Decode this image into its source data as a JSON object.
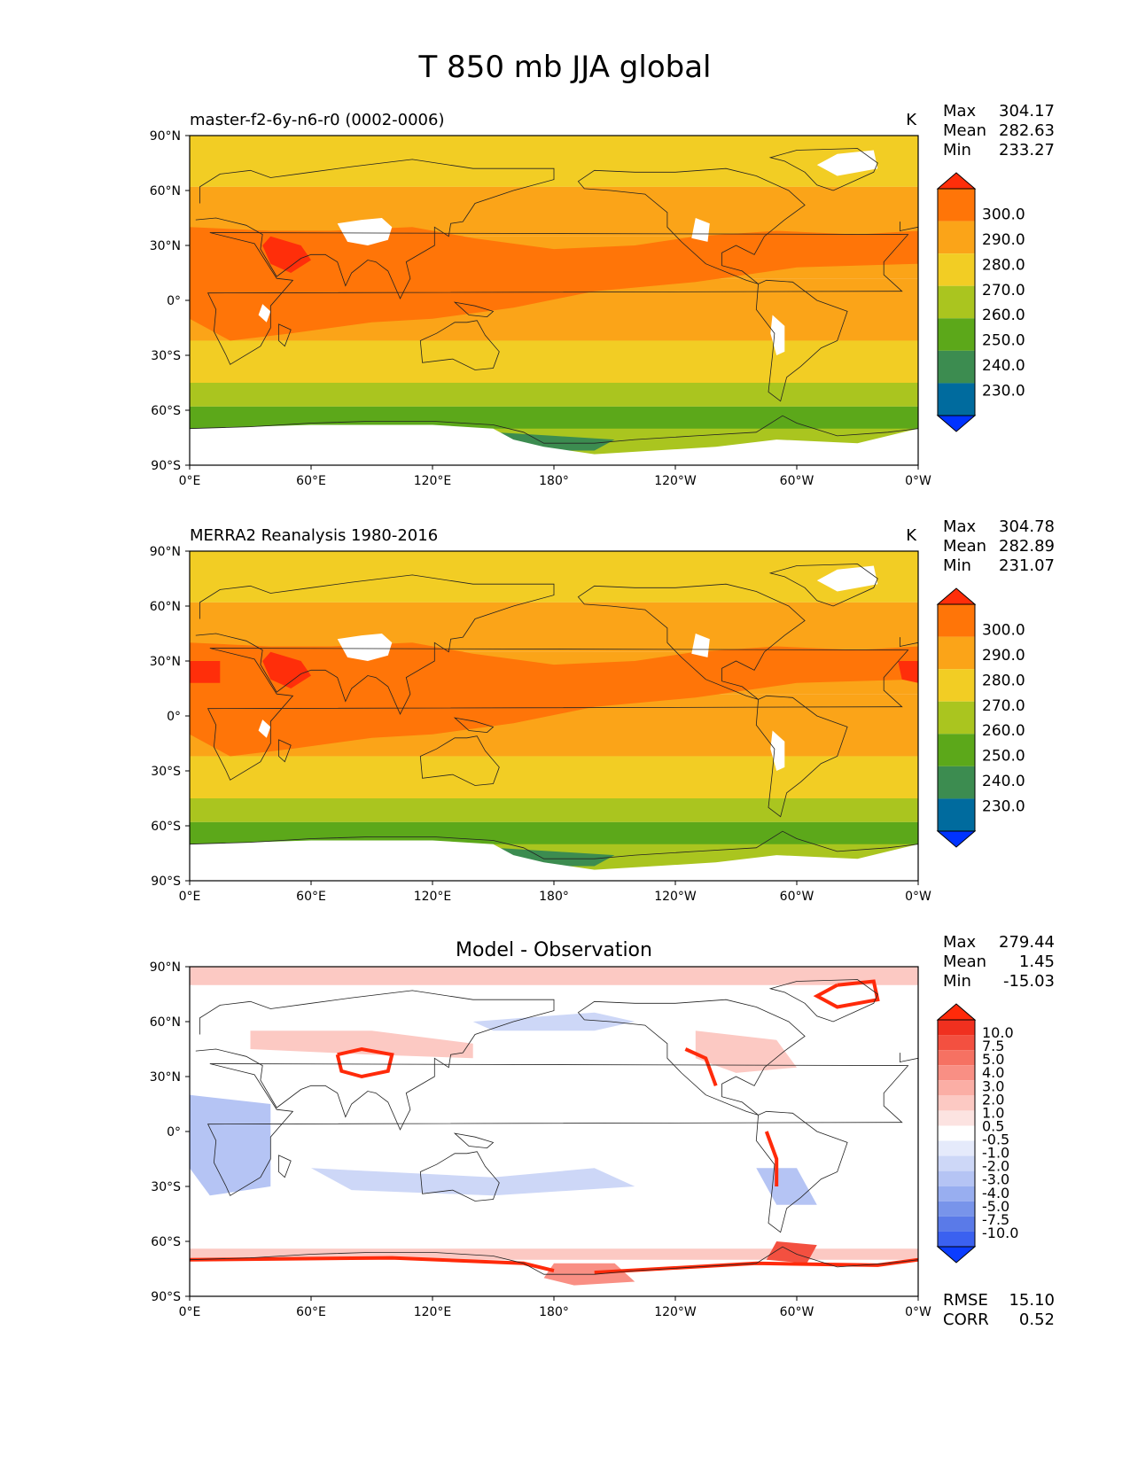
{
  "figure_title": "T 850 mb JJA global",
  "colors": {
    "abs_levels": [
      "#0033ff",
      "#006b9e",
      "#3c8c50",
      "#5ca81a",
      "#aac51f",
      "#f2cd24",
      "#fba418",
      "#ff7508",
      "#ff2e0a"
    ],
    "diff_levels": [
      "#0b3dff",
      "#3b61f0",
      "#5a7ae8",
      "#7894ea",
      "#98aef0",
      "#b5c4f4",
      "#cdd7f7",
      "#e5eafb",
      "#ffffff",
      "#fce3e1",
      "#fcc9c3",
      "#fbaea5",
      "#f98f84",
      "#f67162",
      "#f35040",
      "#f0301f",
      "#ff2a0a"
    ],
    "land_outline": "#222222",
    "missing_data": "#ffffff"
  },
  "axis_ticks": {
    "lat": [
      "90°N",
      "60°N",
      "30°N",
      "0°",
      "30°S",
      "60°S",
      "90°S"
    ],
    "lon": [
      "0°E",
      "60°E",
      "120°E",
      "180°",
      "120°W",
      "60°W",
      "0°W"
    ]
  },
  "panels": [
    {
      "title": "master-f2-6y-n6-r0 (0002-0006)",
      "title_position": "left",
      "units": "K",
      "stats": [
        {
          "name": "Max",
          "value": "304.17"
        },
        {
          "name": "Mean",
          "value": "282.63"
        },
        {
          "name": "Min",
          "value": "233.27"
        }
      ],
      "colorbar_labels": [
        "300.0",
        "290.0",
        "280.0",
        "270.0",
        "260.0",
        "250.0",
        "240.0",
        "230.0"
      ]
    },
    {
      "title": "MERRA2 Reanalysis 1980-2016",
      "title_position": "left",
      "units": "K",
      "stats": [
        {
          "name": "Max",
          "value": "304.78"
        },
        {
          "name": "Mean",
          "value": "282.89"
        },
        {
          "name": "Min",
          "value": "231.07"
        }
      ],
      "colorbar_labels": [
        "300.0",
        "290.0",
        "280.0",
        "270.0",
        "260.0",
        "250.0",
        "240.0",
        "230.0"
      ]
    },
    {
      "title": "Model - Observation",
      "title_position": "center",
      "units": "",
      "stats": [
        {
          "name": "Max",
          "value": "279.44"
        },
        {
          "name": "Mean",
          "value": "1.45"
        },
        {
          "name": "Min",
          "value": "-15.03"
        }
      ],
      "colorbar_labels": [
        "10.0",
        "7.5",
        "5.0",
        "4.0",
        "3.0",
        "2.0",
        "1.0",
        "0.5",
        "-0.5",
        "-1.0",
        "-2.0",
        "-3.0",
        "-4.0",
        "-5.0",
        "-7.5",
        "-10.0"
      ],
      "metrics": [
        {
          "name": "RMSE",
          "value": "15.10"
        },
        {
          "name": "CORR",
          "value": "0.52"
        }
      ]
    }
  ]
}
